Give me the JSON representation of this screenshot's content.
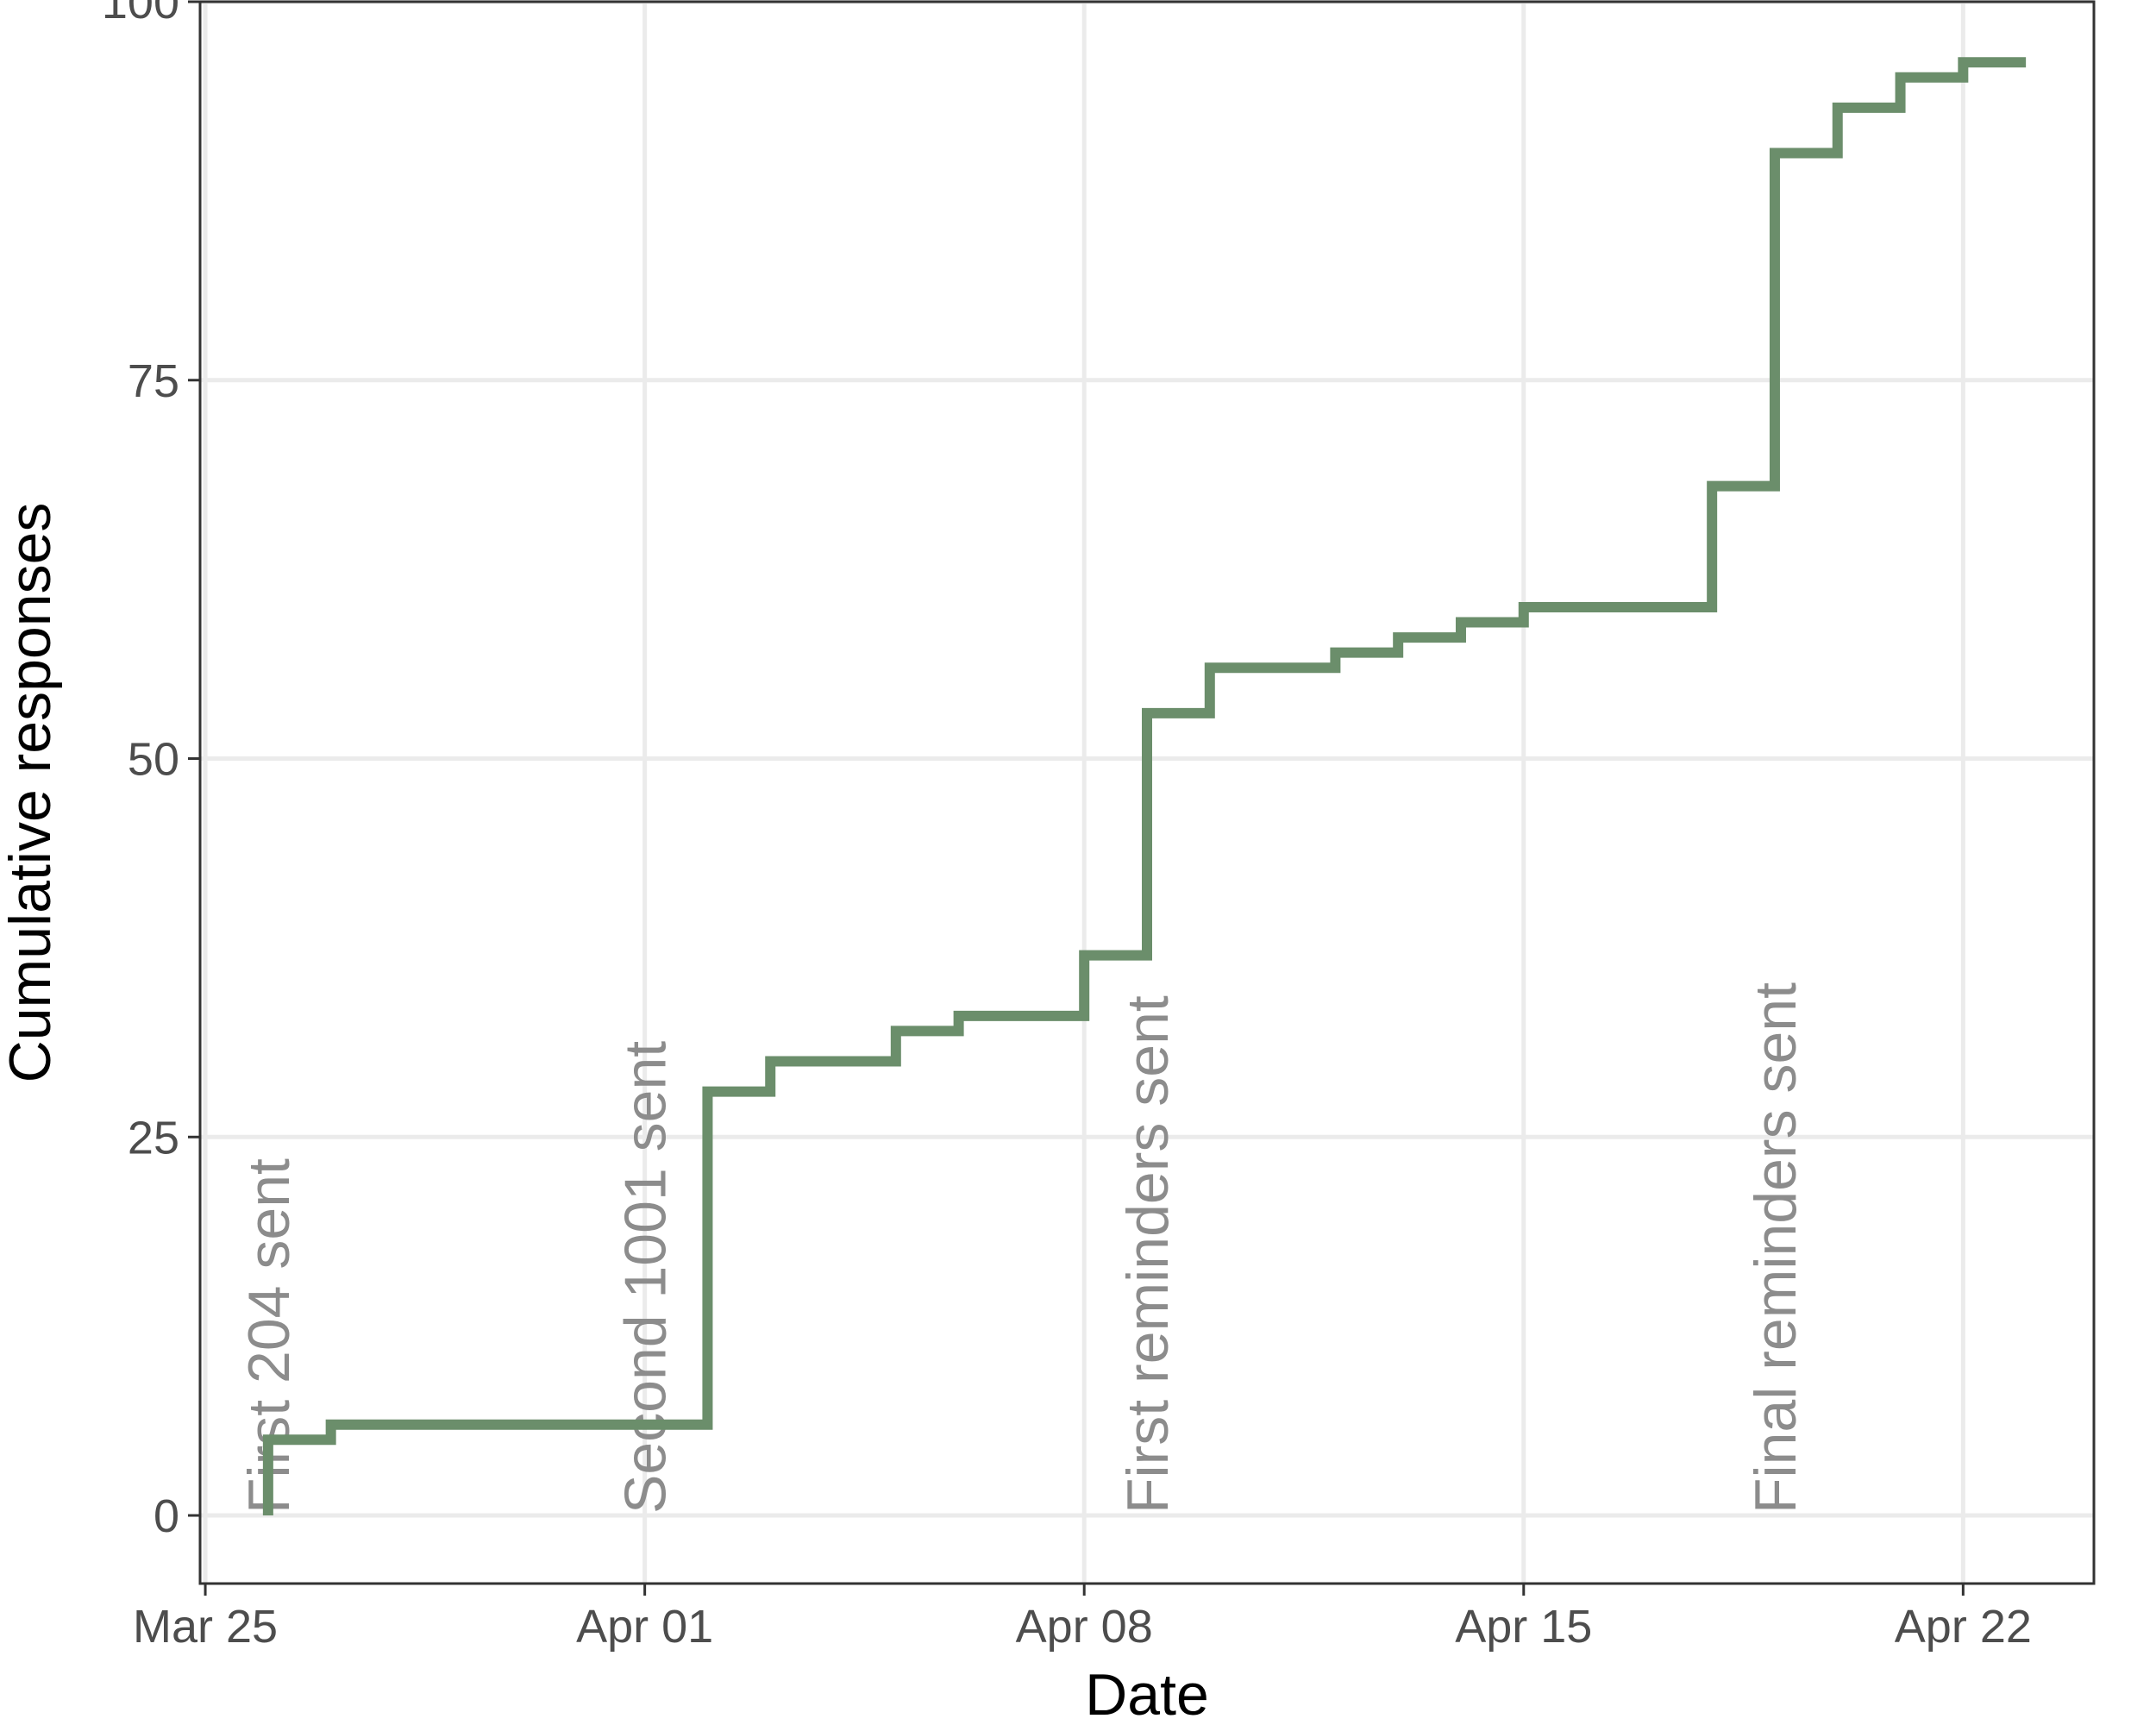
{
  "chart_data": {
    "type": "line",
    "step": true,
    "title": "",
    "xlabel": "Date",
    "ylabel": "Cumulative responses",
    "xlim": [
      "2020-03-24 22:00",
      "2020-04-24 02:00"
    ],
    "ylim": [
      -4.5,
      100
    ],
    "x_ticks": [
      {
        "date": "2020-03-25",
        "label": "Mar 25"
      },
      {
        "date": "2020-04-01",
        "label": "Apr 01"
      },
      {
        "date": "2020-04-08",
        "label": "Apr 08"
      },
      {
        "date": "2020-04-15",
        "label": "Apr 15"
      },
      {
        "date": "2020-04-22",
        "label": "Apr 22"
      }
    ],
    "y_ticks": [
      0,
      25,
      50,
      75,
      100
    ],
    "grid": true,
    "series": [
      {
        "color": "#6b8e6b",
        "x": [
          "2020-03-26",
          "2020-03-27",
          "2020-04-02",
          "2020-04-03",
          "2020-04-05",
          "2020-04-06",
          "2020-04-08",
          "2020-04-09",
          "2020-04-10",
          "2020-04-12",
          "2020-04-13",
          "2020-04-14",
          "2020-04-15",
          "2020-04-18",
          "2020-04-19",
          "2020-04-20",
          "2020-04-21",
          "2020-04-22",
          "2020-04-23"
        ],
        "y": [
          5,
          6,
          28,
          30,
          32,
          33,
          37,
          53,
          56,
          57,
          58,
          59,
          60,
          68,
          90,
          93,
          95,
          96,
          96
        ]
      }
    ],
    "annotations": [
      {
        "date": "2020-03-26",
        "text": "First 204 sent"
      },
      {
        "date": "2020-04-01",
        "text": "Second 1001 sent"
      },
      {
        "date": "2020-04-09",
        "text": "First reminders sent"
      },
      {
        "date": "2020-04-19",
        "text": "Final reminders sent"
      }
    ]
  }
}
